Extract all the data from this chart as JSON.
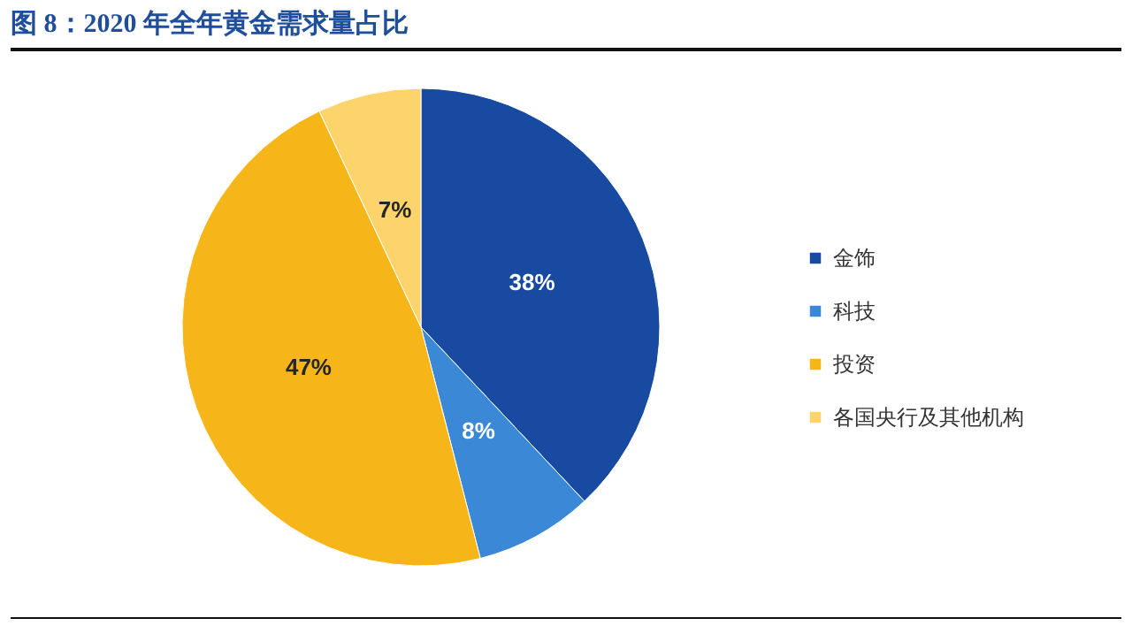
{
  "chart_data": {
    "type": "pie",
    "title": "图 8：2020 年全年黄金需求量占比",
    "categories": [
      "金饰",
      "科技",
      "投资",
      "各国央行及其他机构"
    ],
    "values": [
      38,
      8,
      47,
      7
    ],
    "colors": [
      "#174aa0",
      "#3b88d6",
      "#f6b619",
      "#fdd46c"
    ],
    "value_labels": [
      "38%",
      "8%",
      "47%",
      "7%"
    ],
    "legend": "right"
  }
}
